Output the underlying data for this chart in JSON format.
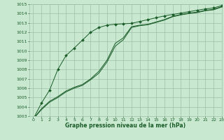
{
  "x": [
    0,
    1,
    2,
    3,
    4,
    5,
    6,
    7,
    8,
    9,
    10,
    11,
    12,
    13,
    14,
    15,
    16,
    17,
    18,
    19,
    20,
    21,
    22,
    23
  ],
  "line_slow1": [
    1002.7,
    1003.8,
    1004.6,
    1005.1,
    1005.7,
    1006.1,
    1006.4,
    1007.0,
    1007.8,
    1009.0,
    1010.8,
    1011.4,
    1012.6,
    1012.75,
    1012.85,
    1013.1,
    1013.35,
    1013.7,
    1013.9,
    1014.05,
    1014.15,
    1014.35,
    1014.45,
    1014.75
  ],
  "line_slow2": [
    1002.7,
    1003.7,
    1004.5,
    1005.0,
    1005.6,
    1006.0,
    1006.3,
    1006.9,
    1007.6,
    1008.8,
    1010.5,
    1011.2,
    1012.5,
    1012.7,
    1012.8,
    1013.05,
    1013.3,
    1013.65,
    1013.85,
    1014.0,
    1014.1,
    1014.3,
    1014.4,
    1014.7
  ],
  "line_fast_x": [
    0,
    1,
    2,
    3,
    4,
    5,
    6,
    7,
    8,
    9,
    10,
    11,
    12,
    13,
    14,
    15,
    16,
    17,
    18,
    19,
    20,
    21,
    22,
    23
  ],
  "line_fast": [
    1002.7,
    1004.4,
    1005.8,
    1008.0,
    1009.5,
    1010.3,
    1011.15,
    1012.0,
    1012.5,
    1012.75,
    1012.85,
    1012.9,
    1012.95,
    1013.15,
    1013.35,
    1013.55,
    1013.75,
    1013.9,
    1014.05,
    1014.2,
    1014.35,
    1014.5,
    1014.6,
    1014.85
  ],
  "bg_color": "#c8e8d0",
  "grid_color": "#9dbfaa",
  "line_color": "#1a5c28",
  "ylim": [
    1003,
    1015
  ],
  "xlim": [
    -0.5,
    23
  ],
  "xlabel": "Graphe pression niveau de la mer (hPa)",
  "yticks": [
    1003,
    1004,
    1005,
    1006,
    1007,
    1008,
    1009,
    1010,
    1011,
    1012,
    1013,
    1014,
    1015
  ],
  "xticks": [
    0,
    1,
    2,
    3,
    4,
    5,
    6,
    7,
    8,
    9,
    10,
    11,
    12,
    13,
    14,
    15,
    16,
    17,
    18,
    19,
    20,
    21,
    22,
    23
  ],
  "tick_fontsize": 4.5,
  "label_fontsize": 5.5
}
